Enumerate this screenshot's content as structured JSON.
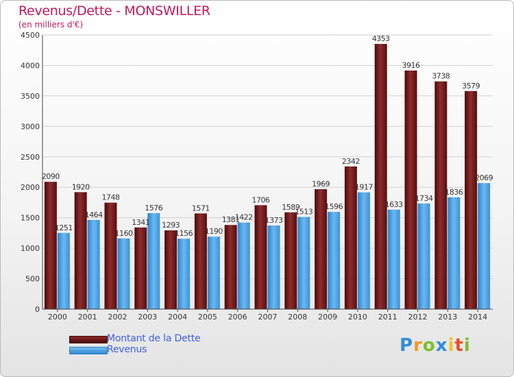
{
  "header": {
    "title": "Revenus/Dette - MONSWILLER",
    "unit": "(en milliers d'€)"
  },
  "legend": {
    "debt_label": "Montant de la Dette",
    "revenue_label": "Revenus"
  },
  "logo": {
    "text": "Proxiti"
  },
  "colors": {
    "debt": "#6e1414",
    "revenue": "#4aa3e6",
    "title": "#c2185b",
    "legend_text": "#3f5fdb"
  },
  "chart_data": {
    "type": "bar",
    "categories": [
      "2000",
      "2001",
      "2002",
      "2003",
      "2004",
      "2005",
      "2006",
      "2007",
      "2008",
      "2009",
      "2010",
      "2011",
      "2012",
      "2013",
      "2014"
    ],
    "series": [
      {
        "name": "Montant de la Dette",
        "values": [
          2090,
          1920,
          1748,
          1341,
          1293,
          1571,
          1381,
          1706,
          1589,
          1969,
          2342,
          4353,
          3916,
          3738,
          3579
        ]
      },
      {
        "name": "Revenus",
        "values": [
          1251,
          1464,
          1160,
          1576,
          1156,
          1190,
          1422,
          1373,
          1513,
          1596,
          1917,
          1633,
          1734,
          1836,
          2069
        ]
      }
    ],
    "y_ticks": [
      0,
      500,
      1000,
      1500,
      2000,
      2500,
      3000,
      3500,
      4000,
      4500
    ],
    "ylim": [
      0,
      4500
    ],
    "grid": true,
    "legend_position": "bottom-left"
  }
}
